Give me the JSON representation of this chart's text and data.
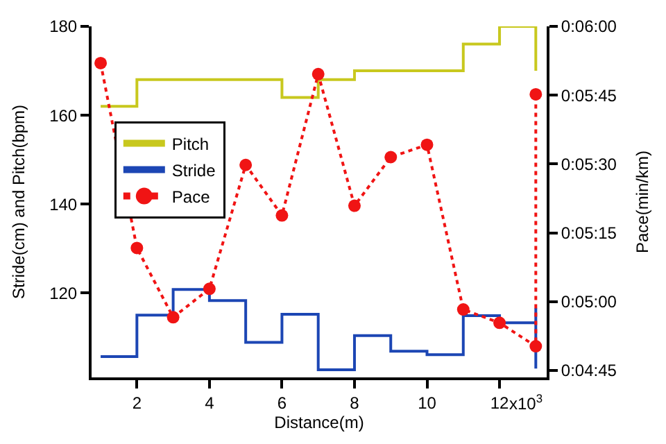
{
  "chart_data": {
    "type": "step",
    "xlabel": "Distance(m)",
    "ylabel": "Stride(cm) and Pitch(bpm)",
    "y2label": "Pace(min/km)",
    "xlim": [
      0.75,
      13.3
    ],
    "xticks": [
      2,
      4,
      6,
      8,
      10,
      12
    ],
    "annotations": [
      "x10$^{3}$"
    ],
    "ylim": [
      101,
      180
    ],
    "yticks": [
      120,
      140,
      160,
      180
    ],
    "y2lim": [
      283.5,
      360
    ],
    "y2ticks": [
      {
        "value": 285,
        "label": "0:04:45"
      },
      {
        "value": 300,
        "label": "0:05:00"
      },
      {
        "value": 315,
        "label": "0:05:15"
      },
      {
        "value": 330,
        "label": "0:05:30"
      },
      {
        "value": 345,
        "label": "0:05:45"
      },
      {
        "value": 360,
        "label": "0:06:00"
      }
    ],
    "legend": "top left",
    "series": [
      {
        "name": "Pitch",
        "color": "#c8c81e",
        "marker": "none",
        "line_style": "solid",
        "x": [
          1,
          2,
          3,
          4,
          5,
          6,
          7,
          8,
          9,
          10,
          11,
          12,
          13
        ],
        "values": [
          162,
          168,
          168,
          168,
          168,
          164,
          168,
          170,
          170,
          170,
          176,
          180,
          170
        ]
      },
      {
        "name": "Stride",
        "color": "#1c46b4",
        "marker": "none",
        "line_style": "solid",
        "x": [
          1,
          2,
          3,
          4,
          5,
          6,
          7,
          8,
          9,
          10,
          11,
          12,
          13,
          13
        ],
        "values": [
          105.7,
          115,
          120.8,
          118.3,
          108.9,
          115.2,
          102.7,
          110.4,
          106.9,
          106.1,
          114.9,
          113.3,
          116.6,
          103
        ]
      },
      {
        "name": "Pace",
        "type": "line",
        "axis": "y2",
        "color": "#f01414",
        "marker": "circle",
        "line_style": "dotted",
        "x": [
          1,
          2,
          3,
          4,
          5,
          6,
          7,
          8,
          9,
          10,
          11,
          12,
          13,
          13
        ],
        "values": [
          352,
          311.7,
          296.6,
          302.8,
          329.8,
          318.8,
          349.6,
          320.9,
          331.5,
          334.2,
          298.3,
          295.4,
          290.3,
          345.2
        ]
      }
    ]
  }
}
